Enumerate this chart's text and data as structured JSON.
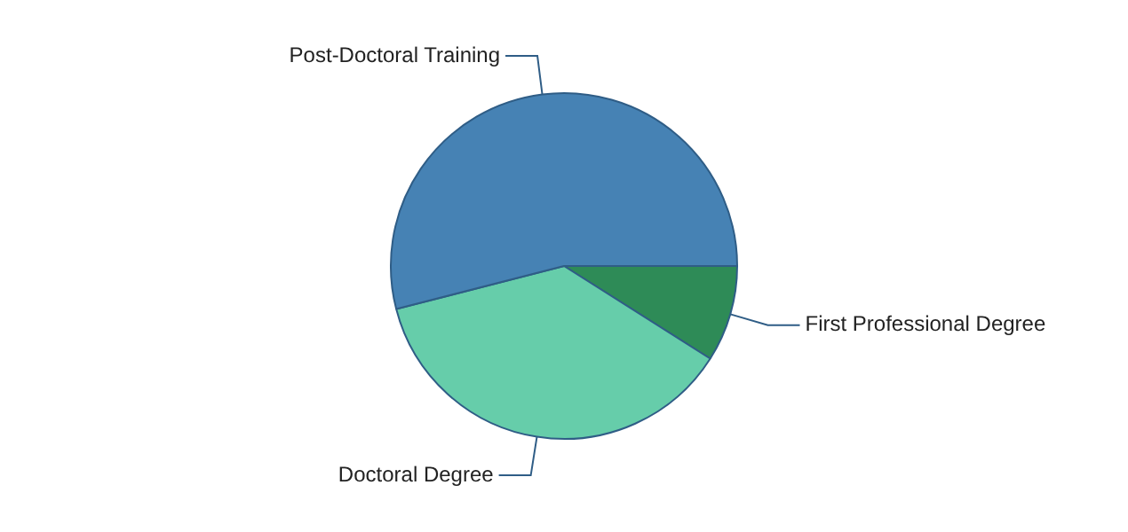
{
  "chart_data": {
    "type": "pie",
    "categories": [
      "First Professional Degree",
      "Doctoral Degree",
      "Post-Doctoral Training"
    ],
    "values": [
      9,
      37,
      54
    ],
    "colors": [
      "#2e8b57",
      "#66cdaa",
      "#4682b4"
    ]
  }
}
